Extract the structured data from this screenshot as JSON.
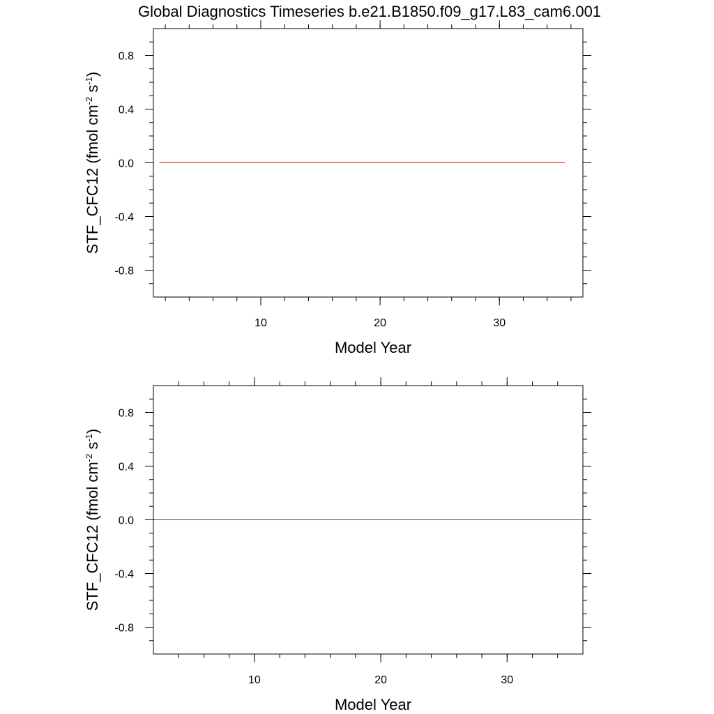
{
  "title": "Global Diagnostics Timeseries b.e21.B1850.f09_g17.L83_cam6.001",
  "chart_data": [
    {
      "type": "line",
      "xlabel": "Model Year",
      "ylabel_main": "STF_CFC12 (fmol cm",
      "ylabel_sup1": "-2",
      "ylabel_mid": " s",
      "ylabel_sup2": "-1",
      "ylabel_end": ")",
      "xlim": [
        1,
        37
      ],
      "ylim": [
        -1,
        1
      ],
      "xticks": [
        10,
        20,
        30
      ],
      "xtick_labels": [
        "10",
        "20",
        "30"
      ],
      "yticks": [
        0.8,
        0.4,
        0.0,
        -0.4,
        -0.8
      ],
      "ytick_labels": [
        "0.8",
        "0.4",
        "0.0",
        "-0.4",
        "-0.8"
      ],
      "grid": false,
      "series": [
        {
          "color": "#8b2a1a",
          "x": [
            1.5,
            35.5
          ],
          "y": [
            0,
            0
          ]
        }
      ]
    },
    {
      "type": "line",
      "xlabel": "Model Year",
      "ylabel_main": "STF_CFC12 (fmol cm",
      "ylabel_sup1": "-2",
      "ylabel_mid": " s",
      "ylabel_sup2": "-1",
      "ylabel_end": ")",
      "xlim": [
        2,
        36
      ],
      "ylim": [
        -1,
        1
      ],
      "xticks": [
        10,
        20,
        30
      ],
      "xtick_labels": [
        "10",
        "20",
        "30"
      ],
      "yticks": [
        0.8,
        0.4,
        0.0,
        -0.4,
        -0.8
      ],
      "ytick_labels": [
        "0.8",
        "0.4",
        "0.0",
        "-0.4",
        "-0.8"
      ],
      "grid": false,
      "series": [
        {
          "color": "#8b2a1a",
          "x": [
            2,
            36
          ],
          "y": [
            0,
            0
          ]
        }
      ]
    }
  ]
}
